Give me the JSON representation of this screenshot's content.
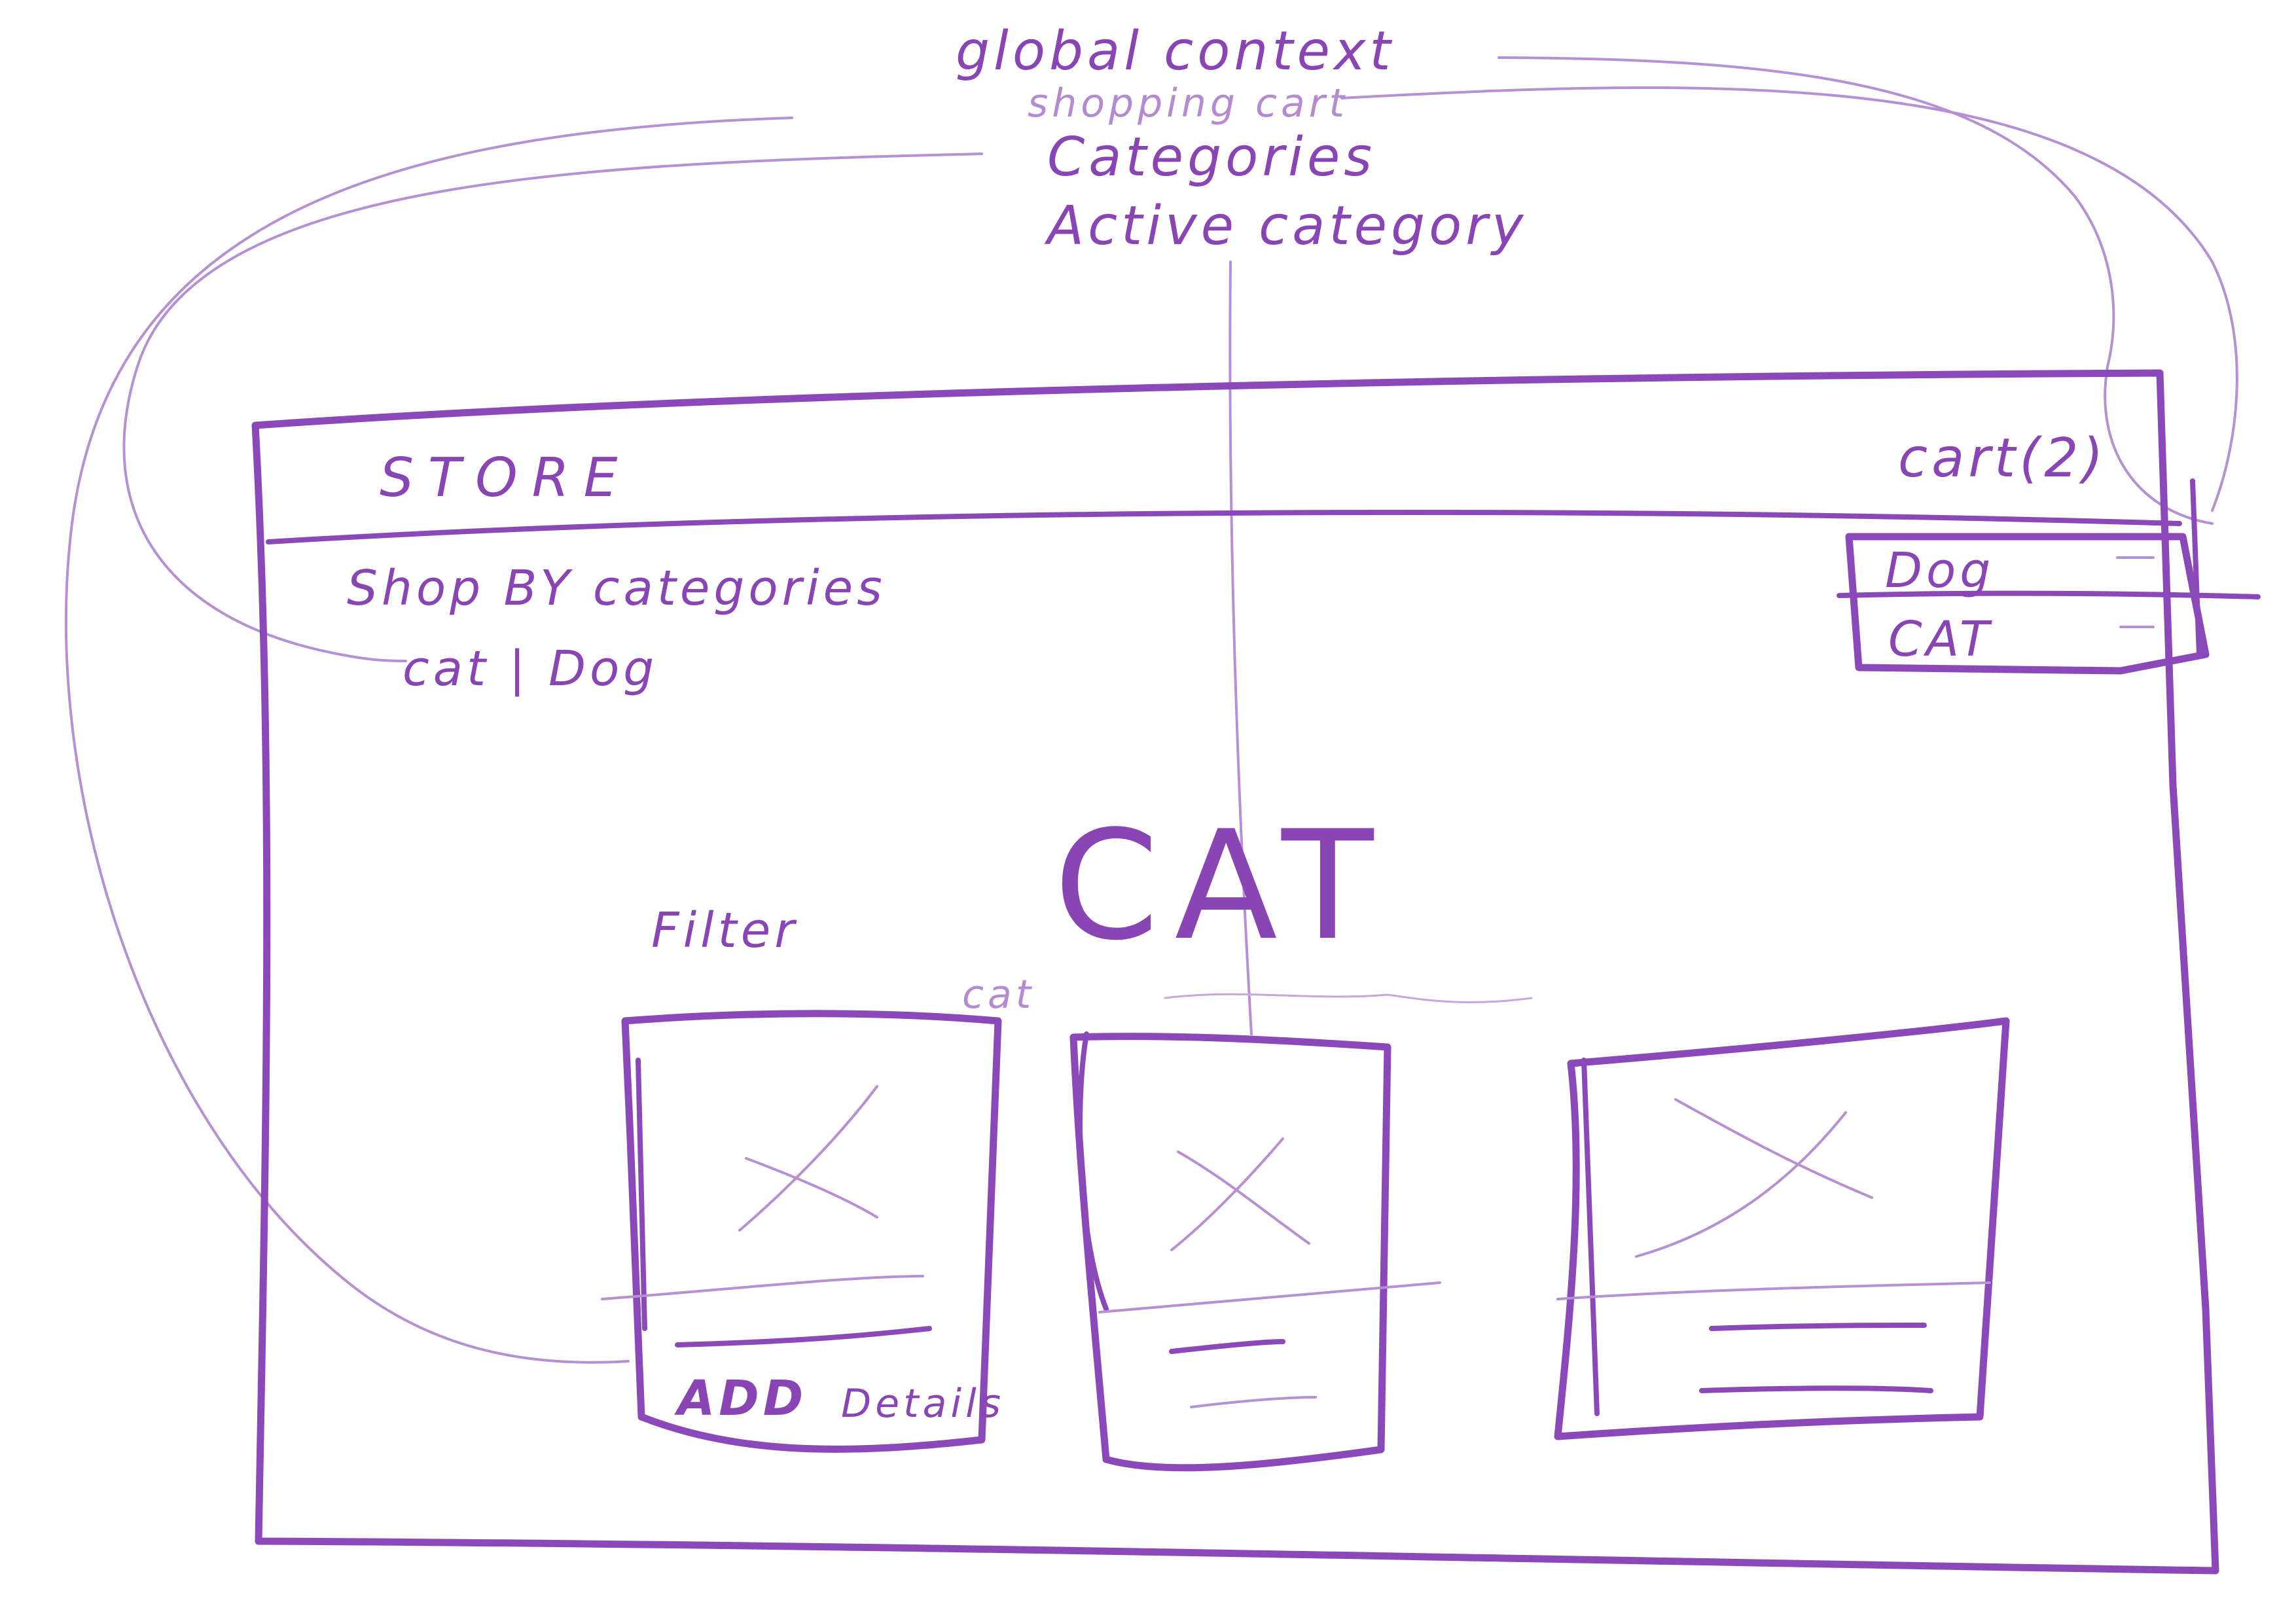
{
  "annotations": {
    "global_context": "global context",
    "shopping_cart": "shopping cart",
    "categories": "Categories",
    "active_category": "Active category"
  },
  "header": {
    "store": "STORE",
    "cart": "cart(2)"
  },
  "cart_dropdown": {
    "items": [
      {
        "label": "Dog"
      },
      {
        "label": "CAT"
      }
    ]
  },
  "category_nav": {
    "title": "Shop BY categories",
    "links": "cat | Dog"
  },
  "main": {
    "active_category": "CAT",
    "subtitle": "cat",
    "filter_label": "Filter"
  },
  "product_cards": [
    {
      "add_label": "ADD",
      "details_label": "Details"
    },
    {},
    {}
  ],
  "colors": {
    "ink": "#8b48b8",
    "ink_faint": "#b690d3",
    "paper": "#ffffff"
  }
}
